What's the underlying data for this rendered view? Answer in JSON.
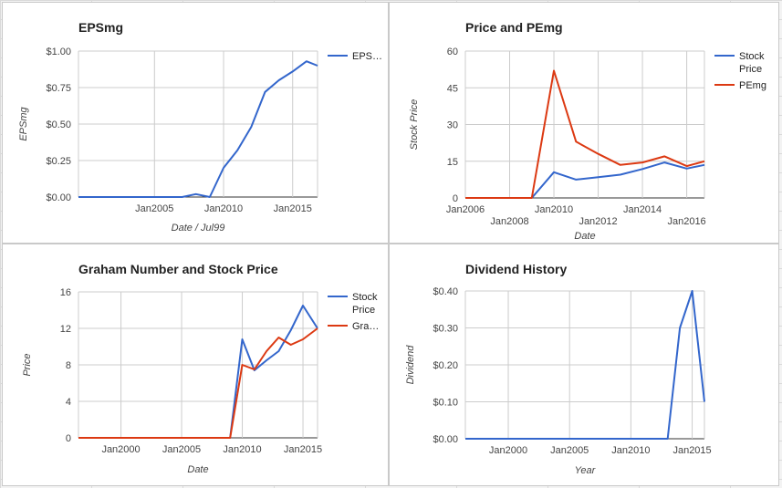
{
  "chart_data": [
    {
      "type": "line",
      "title": "EPSmg",
      "xlabel": "Date / Jul99",
      "ylabel": "EPSmg",
      "xlim": [
        1999.5,
        2016.8
      ],
      "ylim": [
        0,
        1
      ],
      "yticks": [
        0,
        0.25,
        0.5,
        0.75,
        1.0
      ],
      "ytick_labels": [
        "$0.00",
        "$0.25",
        "$0.50",
        "$0.75",
        "$1.00"
      ],
      "xticks": [
        2005,
        2010,
        2015
      ],
      "xtick_labels": [
        "Jan2005",
        "Jan2010",
        "Jan2015"
      ],
      "grid": true,
      "legend": "right",
      "series": [
        {
          "name": "EPS…",
          "color": "#3366cc",
          "x": [
            1999.5,
            2007,
            2008,
            2009,
            2010,
            2011,
            2012,
            2013,
            2014,
            2015,
            2016,
            2016.8
          ],
          "y": [
            0,
            0,
            0.02,
            0,
            0.2,
            0.32,
            0.48,
            0.72,
            0.8,
            0.86,
            0.93,
            0.9
          ]
        }
      ]
    },
    {
      "type": "line",
      "title": "Price and PEmg",
      "xlabel": "Date",
      "ylabel": "Stock Price",
      "xlim": [
        2006,
        2016.8
      ],
      "ylim": [
        0,
        60
      ],
      "yticks": [
        0,
        15,
        30,
        45,
        60
      ],
      "ytick_labels": [
        "0",
        "15",
        "30",
        "45",
        "60"
      ],
      "xticks": [
        2006,
        2008,
        2010,
        2012,
        2014,
        2016
      ],
      "xtick_labels": [
        "Jan2006",
        "Jan2008",
        "Jan2010",
        "Jan2012",
        "Jan2014",
        "Jan2016"
      ],
      "grid": true,
      "legend": "right",
      "series": [
        {
          "name": "Stock Price",
          "color": "#3366cc",
          "x": [
            2006,
            2009,
            2010,
            2011,
            2012,
            2013,
            2014,
            2015,
            2016,
            2016.8
          ],
          "y": [
            0,
            0,
            10.5,
            7.5,
            8.5,
            9.5,
            11.8,
            14.5,
            12,
            13.5
          ]
        },
        {
          "name": "PEmg",
          "color": "#dc3912",
          "x": [
            2006,
            2009,
            2010,
            2011,
            2012,
            2013,
            2014,
            2015,
            2016,
            2016.8
          ],
          "y": [
            0,
            0,
            52,
            23,
            18,
            13.5,
            14.5,
            17,
            13,
            15
          ]
        }
      ]
    },
    {
      "type": "line",
      "title": "Graham Number and Stock Price",
      "xlabel": "Date",
      "ylabel": "Price",
      "xlim": [
        1996.5,
        2016.2
      ],
      "ylim": [
        0,
        16
      ],
      "yticks": [
        0,
        4,
        8,
        12,
        16
      ],
      "ytick_labels": [
        "0",
        "4",
        "8",
        "12",
        "16"
      ],
      "xticks": [
        2000,
        2005,
        2010,
        2015
      ],
      "xtick_labels": [
        "Jan2000",
        "Jan2005",
        "Jan2010",
        "Jan2015"
      ],
      "grid": true,
      "legend": "right",
      "series": [
        {
          "name": "Stock Price",
          "color": "#3366cc",
          "x": [
            1996.5,
            2009,
            2010,
            2011,
            2012,
            2013,
            2014,
            2015,
            2016.2
          ],
          "y": [
            0,
            0,
            10.8,
            7.4,
            8.5,
            9.5,
            11.8,
            14.5,
            12
          ]
        },
        {
          "name": "Gra…",
          "color": "#dc3912",
          "x": [
            1996.5,
            2009,
            2010,
            2011,
            2012,
            2013,
            2014,
            2015,
            2016.2
          ],
          "y": [
            0,
            0,
            8,
            7.5,
            9.5,
            11,
            10.2,
            10.8,
            12
          ]
        }
      ]
    },
    {
      "type": "line",
      "title": "Dividend History",
      "xlabel": "Year",
      "ylabel": "Dividend",
      "xlim": [
        1996.5,
        2016
      ],
      "ylim": [
        0,
        0.4
      ],
      "yticks": [
        0,
        0.1,
        0.2,
        0.3,
        0.4
      ],
      "ytick_labels": [
        "$0.00",
        "$0.10",
        "$0.20",
        "$0.30",
        "$0.40"
      ],
      "xticks": [
        2000,
        2005,
        2010,
        2015
      ],
      "xtick_labels": [
        "Jan2000",
        "Jan2005",
        "Jan2010",
        "Jan2015"
      ],
      "grid": true,
      "legend": "none",
      "series": [
        {
          "name": "",
          "color": "#3366cc",
          "x": [
            1996.5,
            2013,
            2014,
            2015,
            2016
          ],
          "y": [
            0,
            0,
            0.3,
            0.4,
            0.1
          ]
        }
      ]
    }
  ]
}
